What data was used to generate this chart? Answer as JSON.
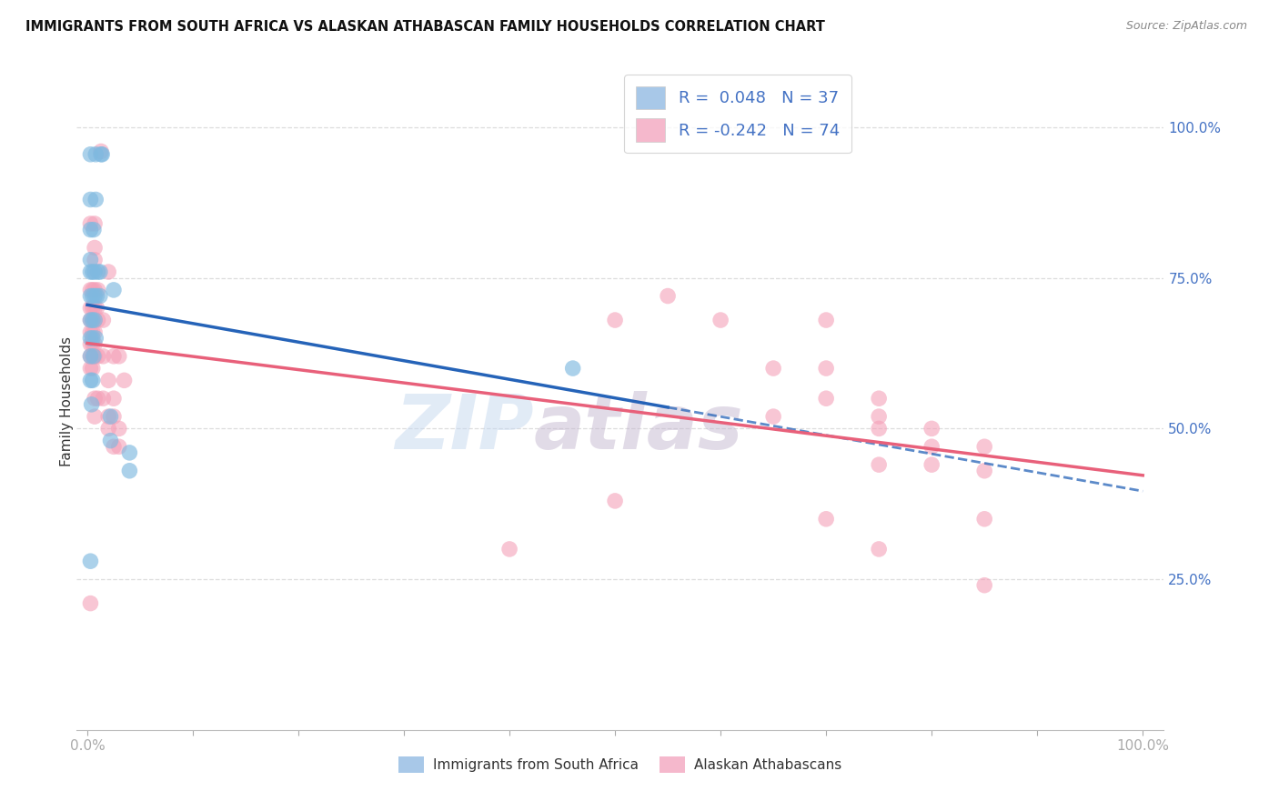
{
  "title": "IMMIGRANTS FROM SOUTH AFRICA VS ALASKAN ATHABASCAN FAMILY HOUSEHOLDS CORRELATION CHART",
  "source": "Source: ZipAtlas.com",
  "ylabel": "Family Households",
  "blue_color": "#7fb9e0",
  "pink_color": "#f4a0b8",
  "blue_line_color": "#2563b8",
  "pink_line_color": "#e8607a",
  "blue_scatter": [
    [
      0.003,
      0.955
    ],
    [
      0.008,
      0.955
    ],
    [
      0.013,
      0.955
    ],
    [
      0.014,
      0.955
    ],
    [
      0.003,
      0.88
    ],
    [
      0.008,
      0.88
    ],
    [
      0.003,
      0.83
    ],
    [
      0.006,
      0.83
    ],
    [
      0.003,
      0.78
    ],
    [
      0.025,
      0.73
    ],
    [
      0.003,
      0.76
    ],
    [
      0.005,
      0.76
    ],
    [
      0.007,
      0.76
    ],
    [
      0.01,
      0.76
    ],
    [
      0.012,
      0.76
    ],
    [
      0.003,
      0.72
    ],
    [
      0.005,
      0.72
    ],
    [
      0.007,
      0.72
    ],
    [
      0.009,
      0.72
    ],
    [
      0.012,
      0.72
    ],
    [
      0.003,
      0.68
    ],
    [
      0.005,
      0.68
    ],
    [
      0.007,
      0.68
    ],
    [
      0.003,
      0.65
    ],
    [
      0.005,
      0.65
    ],
    [
      0.008,
      0.65
    ],
    [
      0.003,
      0.62
    ],
    [
      0.006,
      0.62
    ],
    [
      0.003,
      0.58
    ],
    [
      0.005,
      0.58
    ],
    [
      0.004,
      0.54
    ],
    [
      0.022,
      0.52
    ],
    [
      0.022,
      0.48
    ],
    [
      0.04,
      0.46
    ],
    [
      0.04,
      0.43
    ],
    [
      0.003,
      0.28
    ],
    [
      0.46,
      0.6
    ]
  ],
  "pink_scatter": [
    [
      0.013,
      0.96
    ],
    [
      0.003,
      0.84
    ],
    [
      0.007,
      0.84
    ],
    [
      0.007,
      0.8
    ],
    [
      0.007,
      0.78
    ],
    [
      0.02,
      0.76
    ],
    [
      0.003,
      0.73
    ],
    [
      0.005,
      0.73
    ],
    [
      0.007,
      0.73
    ],
    [
      0.01,
      0.73
    ],
    [
      0.003,
      0.7
    ],
    [
      0.005,
      0.7
    ],
    [
      0.007,
      0.7
    ],
    [
      0.009,
      0.7
    ],
    [
      0.003,
      0.68
    ],
    [
      0.005,
      0.68
    ],
    [
      0.007,
      0.68
    ],
    [
      0.01,
      0.68
    ],
    [
      0.015,
      0.68
    ],
    [
      0.003,
      0.66
    ],
    [
      0.005,
      0.66
    ],
    [
      0.007,
      0.66
    ],
    [
      0.003,
      0.64
    ],
    [
      0.005,
      0.64
    ],
    [
      0.007,
      0.64
    ],
    [
      0.003,
      0.62
    ],
    [
      0.005,
      0.62
    ],
    [
      0.007,
      0.62
    ],
    [
      0.01,
      0.62
    ],
    [
      0.015,
      0.62
    ],
    [
      0.025,
      0.62
    ],
    [
      0.03,
      0.62
    ],
    [
      0.003,
      0.6
    ],
    [
      0.005,
      0.6
    ],
    [
      0.02,
      0.58
    ],
    [
      0.035,
      0.58
    ],
    [
      0.007,
      0.55
    ],
    [
      0.01,
      0.55
    ],
    [
      0.015,
      0.55
    ],
    [
      0.025,
      0.55
    ],
    [
      0.007,
      0.52
    ],
    [
      0.02,
      0.52
    ],
    [
      0.025,
      0.52
    ],
    [
      0.02,
      0.5
    ],
    [
      0.03,
      0.5
    ],
    [
      0.025,
      0.47
    ],
    [
      0.03,
      0.47
    ],
    [
      0.5,
      0.68
    ],
    [
      0.55,
      0.72
    ],
    [
      0.6,
      0.68
    ],
    [
      0.7,
      0.68
    ],
    [
      0.65,
      0.6
    ],
    [
      0.7,
      0.6
    ],
    [
      0.7,
      0.55
    ],
    [
      0.75,
      0.55
    ],
    [
      0.65,
      0.52
    ],
    [
      0.75,
      0.52
    ],
    [
      0.75,
      0.5
    ],
    [
      0.8,
      0.5
    ],
    [
      0.8,
      0.47
    ],
    [
      0.85,
      0.47
    ],
    [
      0.75,
      0.44
    ],
    [
      0.8,
      0.44
    ],
    [
      0.85,
      0.43
    ],
    [
      0.5,
      0.38
    ],
    [
      0.7,
      0.35
    ],
    [
      0.85,
      0.35
    ],
    [
      0.4,
      0.3
    ],
    [
      0.75,
      0.3
    ],
    [
      0.85,
      0.24
    ],
    [
      0.003,
      0.21
    ]
  ],
  "xlim": [
    0.0,
    1.0
  ],
  "ylim": [
    0.0,
    1.08
  ],
  "y_ticks": [
    0.25,
    0.5,
    0.75,
    1.0
  ],
  "x_ticks": [
    0.0,
    0.1,
    0.2,
    0.3,
    0.4,
    0.5,
    0.6,
    0.7,
    0.8,
    0.9,
    1.0
  ],
  "watermark_zip": "ZIP",
  "watermark_atlas": "atlas",
  "background_color": "#ffffff",
  "grid_color": "#dddddd",
  "right_tick_color": "#4472c4",
  "bottom_tick_color": "#4472c4"
}
